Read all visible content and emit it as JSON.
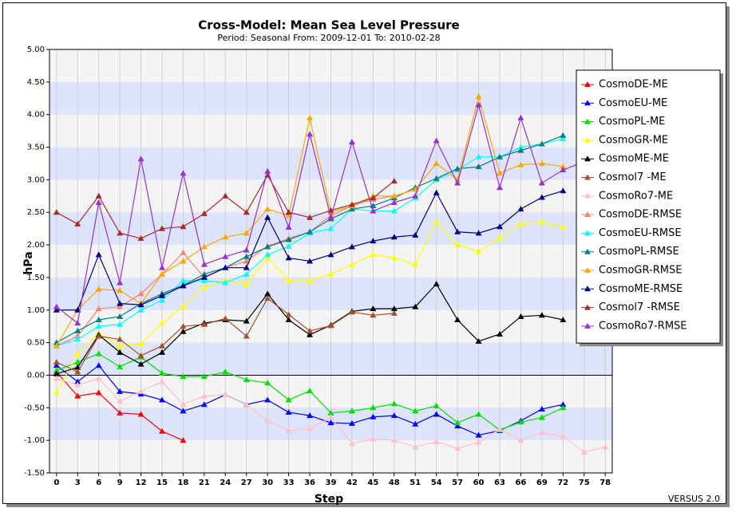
{
  "chart_data": {
    "type": "line",
    "title": "Cross-Model: Mean Sea Level Pressure",
    "subtitle": "Period: Seasonal From:  2009-12-01  To:  2010-02-28",
    "xlabel": "Step",
    "ylabel": "hPa",
    "footer": "VERSUS 2.0",
    "x": [
      0,
      3,
      6,
      9,
      12,
      15,
      18,
      21,
      24,
      27,
      30,
      33,
      36,
      39,
      42,
      45,
      48,
      51,
      54,
      57,
      60,
      63,
      66,
      69,
      72,
      75,
      78
    ],
    "xlim": [
      -1,
      79
    ],
    "xticks": [
      0,
      3,
      6,
      9,
      12,
      15,
      18,
      21,
      24,
      27,
      30,
      33,
      36,
      39,
      42,
      45,
      48,
      51,
      54,
      57,
      60,
      63,
      66,
      69,
      72,
      75,
      78
    ],
    "ylim": [
      -1.5,
      5
    ],
    "yticks": [
      {
        "value": -1.5,
        "label": "-1.50"
      },
      {
        "value": -1,
        "label": "-1.00"
      },
      {
        "value": -0.5,
        "label": "-0.50"
      },
      {
        "value": 0,
        "label": "0.00"
      },
      {
        "value": 0.5,
        "label": "0.50"
      },
      {
        "value": 1,
        "label": "1.00"
      },
      {
        "value": 1.5,
        "label": "1.50"
      },
      {
        "value": 2,
        "label": "2.00"
      },
      {
        "value": 2.5,
        "label": "2.50"
      },
      {
        "value": 3,
        "label": "3.00"
      },
      {
        "value": 3.5,
        "label": "3.50"
      },
      {
        "value": 4,
        "label": "4.00"
      },
      {
        "value": 4.5,
        "label": "4.50"
      },
      {
        "value": 5,
        "label": "5.00"
      }
    ],
    "grid": true,
    "legend": "right",
    "series": [
      {
        "name": "CosmoDE-ME",
        "color": "#ff0000",
        "values": [
          0.05,
          -0.32,
          -0.27,
          -0.58,
          -0.6,
          -0.86,
          -1.0,
          null,
          null,
          null,
          null,
          null,
          null,
          null,
          null,
          null,
          null,
          null,
          null,
          null,
          null,
          null,
          null,
          null,
          null,
          null,
          null
        ]
      },
      {
        "name": "CosmoEU-ME",
        "color": "#0000ff",
        "values": [
          0.15,
          -0.1,
          0.15,
          -0.25,
          -0.29,
          -0.38,
          -0.55,
          -0.45,
          -0.3,
          -0.45,
          -0.38,
          -0.57,
          -0.62,
          -0.73,
          -0.74,
          -0.64,
          -0.62,
          -0.75,
          -0.6,
          -0.78,
          -0.92,
          -0.85,
          -0.7,
          -0.52,
          -0.45,
          null,
          null
        ]
      },
      {
        "name": "CosmoPL-ME",
        "color": "#00e000",
        "values": [
          0.07,
          0.2,
          0.33,
          0.13,
          0.28,
          0.03,
          -0.02,
          -0.02,
          0.05,
          -0.07,
          -0.12,
          -0.38,
          -0.24,
          -0.58,
          -0.55,
          -0.5,
          -0.44,
          -0.55,
          -0.47,
          -0.73,
          -0.6,
          -0.84,
          -0.72,
          -0.65,
          -0.5,
          null,
          null
        ]
      },
      {
        "name": "CosmoGR-ME",
        "color": "#ffff00",
        "values": [
          -0.27,
          0.32,
          0.65,
          0.45,
          0.48,
          0.8,
          1.05,
          1.35,
          1.45,
          1.4,
          1.8,
          1.45,
          1.45,
          1.55,
          1.7,
          1.85,
          1.8,
          1.7,
          2.35,
          2.0,
          1.9,
          2.1,
          2.32,
          2.35,
          2.27,
          null,
          null
        ]
      },
      {
        "name": "CosmoME-ME",
        "color": "#000000",
        "values": [
          0.02,
          0.12,
          0.62,
          0.35,
          0.17,
          0.35,
          0.67,
          0.8,
          0.85,
          0.83,
          1.25,
          0.85,
          0.62,
          0.77,
          0.98,
          1.02,
          1.02,
          1.05,
          1.4,
          0.85,
          0.52,
          0.63,
          0.9,
          0.92,
          0.85,
          null,
          null
        ]
      },
      {
        "name": "Cosmol7 -ME",
        "color": "#a0522d",
        "values": [
          0.2,
          0.05,
          0.6,
          0.55,
          0.3,
          0.45,
          0.75,
          0.78,
          0.87,
          0.6,
          1.18,
          0.93,
          0.68,
          0.76,
          0.97,
          0.92,
          0.95,
          null,
          null,
          null,
          null,
          null,
          null,
          null,
          null,
          null,
          null
        ]
      },
      {
        "name": "CosmoRo7-ME",
        "color": "#ffc0cb",
        "values": [
          -0.05,
          -0.15,
          -0.05,
          -0.4,
          -0.25,
          -0.1,
          -0.45,
          -0.32,
          -0.3,
          -0.45,
          -0.7,
          -0.85,
          -0.82,
          -0.65,
          -1.05,
          -0.98,
          -1.0,
          -1.1,
          -1.02,
          -1.12,
          -1.03,
          -0.83,
          -1.0,
          -0.88,
          -0.94,
          -1.18,
          -1.1
        ]
      },
      {
        "name": "CosmoDE-RMSE",
        "color": "#fa8072",
        "values": [
          0.45,
          0.6,
          1.02,
          1.05,
          1.25,
          1.55,
          1.88,
          1.5,
          1.65,
          1.75,
          1.98,
          2.1,
          2.2,
          2.45,
          2.6,
          2.7,
          2.75,
          null,
          null,
          null,
          null,
          null,
          null,
          null,
          null,
          null,
          null
        ]
      },
      {
        "name": "CosmoEU-RMSE",
        "color": "#00ffff",
        "values": [
          0.45,
          0.55,
          0.75,
          0.78,
          1.0,
          1.15,
          1.45,
          1.45,
          1.42,
          1.55,
          1.85,
          1.98,
          2.18,
          2.25,
          2.55,
          2.52,
          2.52,
          2.72,
          3.0,
          3.15,
          3.35,
          3.35,
          3.5,
          3.55,
          3.63,
          null,
          null
        ]
      },
      {
        "name": "CosmoPL-RMSE",
        "color": "#008080",
        "values": [
          0.5,
          0.68,
          0.85,
          0.9,
          1.1,
          1.25,
          1.38,
          1.55,
          1.65,
          1.82,
          1.97,
          2.08,
          2.2,
          2.4,
          2.55,
          2.6,
          2.72,
          2.88,
          3.02,
          3.17,
          3.2,
          3.35,
          3.45,
          3.55,
          3.68,
          null,
          null
        ]
      },
      {
        "name": "CosmoGR-RMSE",
        "color": "#ffa500",
        "values": [
          0.45,
          1.0,
          1.32,
          1.3,
          1.1,
          1.55,
          1.75,
          1.97,
          2.12,
          2.18,
          2.55,
          2.45,
          3.95,
          2.5,
          2.6,
          2.75,
          2.75,
          2.85,
          3.25,
          3.0,
          4.28,
          3.1,
          3.23,
          3.25,
          3.2,
          null,
          null
        ]
      },
      {
        "name": "CosmoME-RMSE",
        "color": "#000080",
        "values": [
          1.0,
          1.0,
          1.85,
          1.1,
          1.08,
          1.22,
          1.37,
          1.5,
          1.65,
          1.65,
          2.42,
          1.8,
          1.75,
          1.85,
          1.97,
          2.06,
          2.12,
          2.15,
          2.8,
          2.2,
          2.18,
          2.28,
          2.55,
          2.73,
          2.83,
          null,
          null
        ]
      },
      {
        "name": "Cosmol7 -RMSE",
        "color": "#a52a2a",
        "values": [
          2.5,
          2.32,
          2.75,
          2.18,
          2.1,
          2.25,
          2.28,
          2.48,
          2.75,
          2.5,
          3.07,
          2.5,
          2.42,
          2.53,
          2.62,
          2.72,
          2.98,
          null,
          null,
          null,
          null,
          null,
          null,
          null,
          null,
          null,
          null
        ]
      },
      {
        "name": "CosmoRo7-RMSE",
        "color": "#9932cc",
        "values": [
          1.05,
          0.8,
          2.65,
          1.42,
          3.32,
          1.65,
          3.1,
          1.7,
          1.82,
          1.92,
          3.13,
          2.27,
          3.7,
          2.42,
          3.58,
          2.52,
          2.65,
          2.75,
          3.6,
          2.95,
          4.15,
          2.88,
          3.95,
          2.95,
          3.15,
          3.28,
          3.4
        ]
      }
    ]
  }
}
